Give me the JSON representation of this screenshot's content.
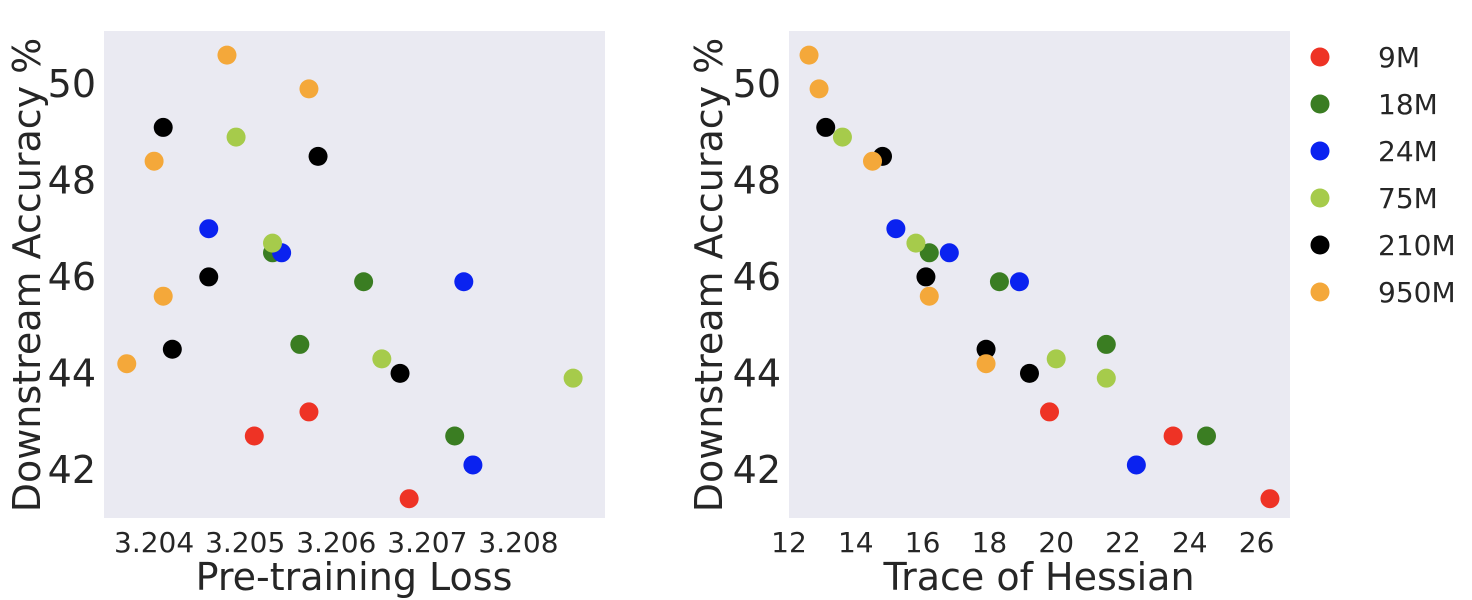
{
  "series_colors": {
    "9M": "#ee3325",
    "18M": "#3a7d22",
    "24M": "#0a22f0",
    "75M": "#a6cb4b",
    "210M": "#000000",
    "950M": "#f4a83a"
  },
  "chart_data": [
    {
      "type": "scatter",
      "title": "",
      "xlabel": "Pre-training Loss",
      "ylabel": "Downstream Accuracy %",
      "xlim": [
        3.20345,
        3.20895
      ],
      "ylim": [
        41.0,
        51.1
      ],
      "xticks": [
        {
          "value": 3.204,
          "label": "3.204"
        },
        {
          "value": 3.205,
          "label": "3.205"
        },
        {
          "value": 3.206,
          "label": "3.206"
        },
        {
          "value": 3.207,
          "label": "3.207"
        },
        {
          "value": 3.208,
          "label": "3.208"
        }
      ],
      "yticks": [
        {
          "value": 42,
          "label": "42"
        },
        {
          "value": 44,
          "label": "44"
        },
        {
          "value": 46,
          "label": "46"
        },
        {
          "value": 48,
          "label": "48"
        },
        {
          "value": 50,
          "label": "50"
        }
      ],
      "series": [
        {
          "name": "9M",
          "points": [
            [
              3.2051,
              42.7
            ],
            [
              3.2057,
              43.2
            ],
            [
              3.2068,
              41.4
            ]
          ]
        },
        {
          "name": "18M",
          "points": [
            [
              3.2053,
              46.5
            ],
            [
              3.2056,
              44.6
            ],
            [
              3.2063,
              45.9
            ],
            [
              3.2073,
              42.7
            ]
          ]
        },
        {
          "name": "24M",
          "points": [
            [
              3.2046,
              47.0
            ],
            [
              3.2054,
              46.5
            ],
            [
              3.2074,
              45.9
            ],
            [
              3.2075,
              42.1
            ]
          ]
        },
        {
          "name": "75M",
          "points": [
            [
              3.2049,
              48.9
            ],
            [
              3.2053,
              46.7
            ],
            [
              3.2065,
              44.3
            ],
            [
              3.2086,
              43.9
            ]
          ]
        },
        {
          "name": "210M",
          "points": [
            [
              3.2041,
              49.1
            ],
            [
              3.2058,
              48.5
            ],
            [
              3.2046,
              46.0
            ],
            [
              3.2042,
              44.5
            ],
            [
              3.2067,
              44.0
            ]
          ]
        },
        {
          "name": "950M",
          "points": [
            [
              3.2048,
              50.6
            ],
            [
              3.2057,
              49.9
            ],
            [
              3.204,
              48.4
            ],
            [
              3.2041,
              45.6
            ],
            [
              3.2037,
              44.2
            ]
          ]
        }
      ]
    },
    {
      "type": "scatter",
      "title": "",
      "xlabel": "Trace of Hessian",
      "ylabel": "Downstream Accuracy %",
      "xlim": [
        12.0,
        27.0
      ],
      "ylim": [
        41.0,
        51.1
      ],
      "xticks": [
        {
          "value": 12,
          "label": "12"
        },
        {
          "value": 14,
          "label": "14"
        },
        {
          "value": 16,
          "label": "16"
        },
        {
          "value": 18,
          "label": "18"
        },
        {
          "value": 20,
          "label": "20"
        },
        {
          "value": 22,
          "label": "22"
        },
        {
          "value": 24,
          "label": "24"
        },
        {
          "value": 26,
          "label": "26"
        }
      ],
      "yticks": [
        {
          "value": 42,
          "label": "42"
        },
        {
          "value": 44,
          "label": "44"
        },
        {
          "value": 46,
          "label": "46"
        },
        {
          "value": 48,
          "label": "48"
        },
        {
          "value": 50,
          "label": "50"
        }
      ],
      "series": [
        {
          "name": "9M",
          "points": [
            [
              19.8,
              43.2
            ],
            [
              23.5,
              42.7
            ],
            [
              26.4,
              41.4
            ]
          ]
        },
        {
          "name": "18M",
          "points": [
            [
              16.2,
              46.5
            ],
            [
              18.3,
              45.9
            ],
            [
              21.5,
              44.6
            ],
            [
              24.5,
              42.7
            ]
          ]
        },
        {
          "name": "24M",
          "points": [
            [
              15.2,
              47.0
            ],
            [
              16.8,
              46.5
            ],
            [
              18.9,
              45.9
            ],
            [
              22.4,
              42.1
            ]
          ]
        },
        {
          "name": "75M",
          "points": [
            [
              13.6,
              48.9
            ],
            [
              15.8,
              46.7
            ],
            [
              20.0,
              44.3
            ],
            [
              21.5,
              43.9
            ]
          ]
        },
        {
          "name": "210M",
          "points": [
            [
              13.1,
              49.1
            ],
            [
              14.8,
              48.5
            ],
            [
              16.1,
              46.0
            ],
            [
              17.9,
              44.5
            ],
            [
              19.2,
              44.0
            ]
          ]
        },
        {
          "name": "950M",
          "points": [
            [
              12.6,
              50.6
            ],
            [
              12.9,
              49.9
            ],
            [
              14.5,
              48.4
            ],
            [
              16.2,
              45.6
            ],
            [
              17.9,
              44.2
            ]
          ]
        }
      ]
    }
  ],
  "legend": {
    "position": "right",
    "entries": [
      {
        "label": "9M",
        "color": "#ee3325"
      },
      {
        "label": "18M",
        "color": "#3a7d22"
      },
      {
        "label": "24M",
        "color": "#0a22f0"
      },
      {
        "label": "75M",
        "color": "#a6cb4b"
      },
      {
        "label": "210M",
        "color": "#000000"
      },
      {
        "label": "950M",
        "color": "#f4a83a"
      }
    ]
  }
}
